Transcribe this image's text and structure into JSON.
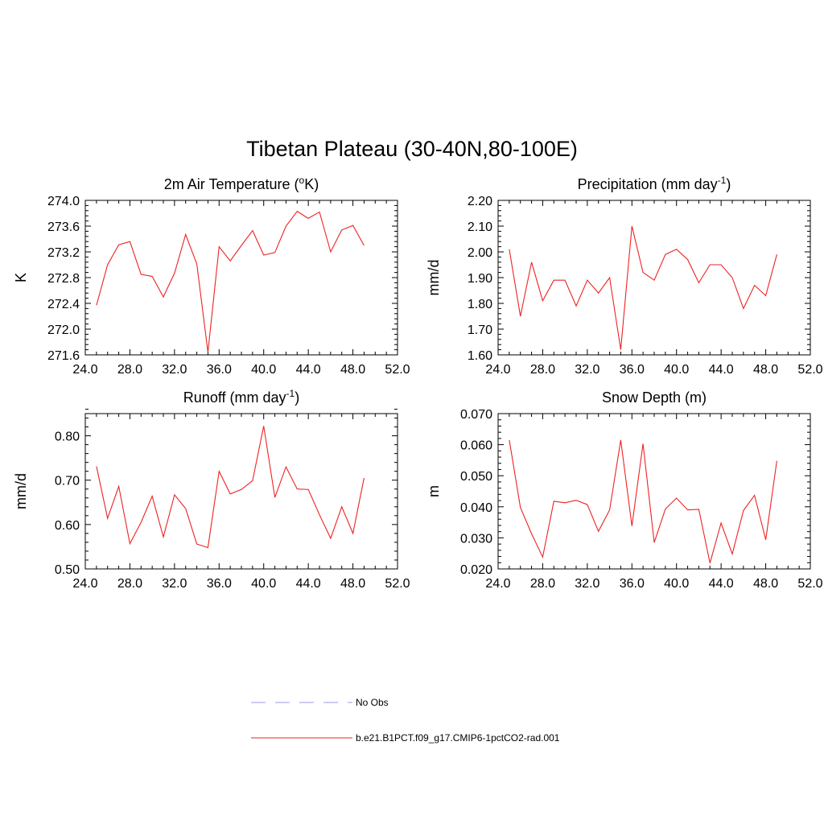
{
  "figure": {
    "title": "Tibetan Plateau (30-40N,80-100E)"
  },
  "legend": {
    "items": [
      {
        "label": "No Obs",
        "color": "#9999ee",
        "dashed": true
      },
      {
        "label": "b.e21.B1PCT.f09_g17.CMIP6-1pctCO2-rad.001",
        "color": "#ee2222",
        "dashed": false
      }
    ]
  },
  "chart_data": [
    {
      "type": "line",
      "title": "2m Air Temperature (°K)",
      "title_parts": {
        "pre": "2m Air Temperature (",
        "sup": "o",
        "post": "K)"
      },
      "ylabel": "K",
      "xlim": [
        24,
        52
      ],
      "ylim": [
        271.6,
        274.0
      ],
      "xticks": [
        "24.0",
        "28.0",
        "32.0",
        "36.0",
        "40.0",
        "44.0",
        "48.0",
        "52.0"
      ],
      "yticks": [
        "271.6",
        "272.0",
        "272.4",
        "272.8",
        "273.2",
        "273.6",
        "274.0"
      ],
      "series": [
        {
          "color": "#ee2222",
          "x": [
            25,
            26,
            27,
            28,
            29,
            30,
            31,
            32,
            33,
            34,
            35,
            36,
            37,
            38,
            39,
            40,
            41,
            42,
            43,
            44,
            45,
            46,
            47,
            48,
            49
          ],
          "y": [
            272.37,
            273.0,
            273.31,
            273.36,
            272.85,
            272.82,
            272.5,
            272.87,
            273.47,
            273.01,
            271.64,
            273.28,
            273.06,
            273.3,
            273.53,
            273.15,
            273.19,
            273.6,
            273.83,
            273.72,
            273.82,
            273.2,
            273.54,
            273.61,
            273.3
          ]
        }
      ]
    },
    {
      "type": "line",
      "title": "Precipitation (mm day-1)",
      "title_parts": {
        "pre": "Precipitation (mm day",
        "sup": "-1",
        "post": ")"
      },
      "ylabel": "mm/d",
      "xlim": [
        24,
        52
      ],
      "ylim": [
        1.6,
        2.2
      ],
      "xticks": [
        "24.0",
        "28.0",
        "32.0",
        "36.0",
        "40.0",
        "44.0",
        "48.0",
        "52.0"
      ],
      "yticks": [
        "1.60",
        "1.70",
        "1.80",
        "1.90",
        "2.00",
        "2.10",
        "2.20"
      ],
      "series": [
        {
          "color": "#ee2222",
          "x": [
            25,
            26,
            27,
            28,
            29,
            30,
            31,
            32,
            33,
            34,
            35,
            36,
            37,
            38,
            39,
            40,
            41,
            42,
            43,
            44,
            45,
            46,
            47,
            48,
            49
          ],
          "y": [
            2.01,
            1.75,
            1.96,
            1.81,
            1.89,
            1.89,
            1.79,
            1.89,
            1.84,
            1.9,
            1.62,
            2.1,
            1.92,
            1.89,
            1.99,
            2.01,
            1.97,
            1.88,
            1.95,
            1.95,
            1.9,
            1.78,
            1.87,
            1.83,
            1.99
          ]
        }
      ]
    },
    {
      "type": "line",
      "title": "Runoff (mm day-1)",
      "title_parts": {
        "pre": "Runoff (mm day",
        "sup": "-1",
        "post": ")"
      },
      "ylabel": "mm/d",
      "xlim": [
        24,
        52
      ],
      "ylim": [
        0.5,
        0.85
      ],
      "xticks": [
        "24.0",
        "28.0",
        "32.0",
        "36.0",
        "40.0",
        "44.0",
        "48.0",
        "52.0"
      ],
      "yticks": [
        "0.50",
        "0.60",
        "0.70",
        "0.80"
      ],
      "series": [
        {
          "color": "#ee2222",
          "x": [
            25,
            26,
            27,
            28,
            29,
            30,
            31,
            32,
            33,
            34,
            35,
            36,
            37,
            38,
            39,
            40,
            41,
            42,
            43,
            44,
            45,
            46,
            47,
            48,
            49
          ],
          "y": [
            0.731,
            0.614,
            0.686,
            0.557,
            0.605,
            0.664,
            0.572,
            0.667,
            0.636,
            0.556,
            0.548,
            0.72,
            0.669,
            0.679,
            0.699,
            0.822,
            0.661,
            0.73,
            0.68,
            0.679,
            0.622,
            0.569,
            0.64,
            0.58,
            0.705
          ]
        }
      ]
    },
    {
      "type": "line",
      "title": "Snow Depth (m)",
      "title_parts": {
        "pre": "Snow Depth (m)",
        "sup": "",
        "post": ""
      },
      "ylabel": "m",
      "xlim": [
        24,
        52
      ],
      "ylim": [
        0.02,
        0.07
      ],
      "xticks": [
        "24.0",
        "28.0",
        "32.0",
        "36.0",
        "40.0",
        "44.0",
        "48.0",
        "52.0"
      ],
      "yticks": [
        "0.020",
        "0.030",
        "0.040",
        "0.050",
        "0.060",
        "0.070"
      ],
      "series": [
        {
          "color": "#ee2222",
          "x": [
            25,
            26,
            27,
            28,
            29,
            30,
            31,
            32,
            33,
            34,
            35,
            36,
            37,
            38,
            39,
            40,
            41,
            42,
            43,
            44,
            45,
            46,
            47,
            48,
            49
          ],
          "y": [
            0.0615,
            0.0398,
            0.0313,
            0.0238,
            0.0418,
            0.0413,
            0.0421,
            0.0407,
            0.0321,
            0.039,
            0.0615,
            0.0338,
            0.0603,
            0.0285,
            0.0393,
            0.0428,
            0.039,
            0.0392,
            0.0219,
            0.0348,
            0.0248,
            0.0388,
            0.0437,
            0.0294,
            0.0548
          ]
        }
      ]
    }
  ]
}
